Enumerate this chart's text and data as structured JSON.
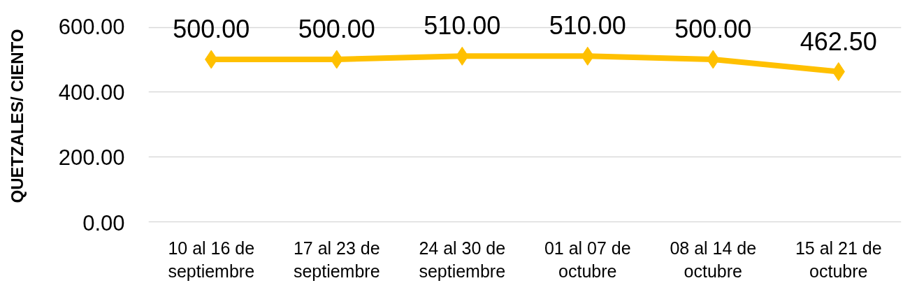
{
  "chart_data": {
    "type": "line",
    "ylabel": "QUETZALES/ CIENTO",
    "categories": [
      "10 al 16 de\nseptiembre",
      "17 al 23 de\nseptiembre",
      "24 al 30 de\nseptiembre",
      "01 al 07 de\noctubre",
      "08 al 14 de\noctubre",
      "15 al 21 de\noctubre"
    ],
    "series": [
      {
        "color": "#ffc000",
        "values": [
          500,
          500,
          510,
          510,
          500,
          462.5
        ],
        "value_labels": [
          "500.00",
          "500.00",
          "510.00",
          "510.00",
          "500.00",
          "462.50"
        ]
      }
    ],
    "ylim": [
      0,
      600
    ],
    "yticks": [
      {
        "value": 0,
        "label": "0.00"
      },
      {
        "value": 200,
        "label": "200.00"
      },
      {
        "value": 400,
        "label": "400.00"
      },
      {
        "value": 600,
        "label": "600.00"
      }
    ],
    "grid": "y",
    "marker": "diamond",
    "line_style": "solid"
  }
}
